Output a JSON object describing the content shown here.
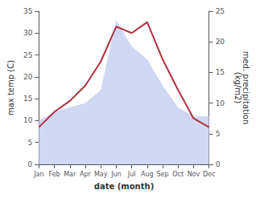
{
  "chart_data": {
    "type": "line",
    "categories": [
      "Jan",
      "Feb",
      "Mar",
      "Apr",
      "May",
      "Jun",
      "Jul",
      "Aug",
      "Sep",
      "Oct",
      "Nov",
      "Dec"
    ],
    "series": [
      {
        "type": "area",
        "color": "#c8d0f0",
        "values": [
          10,
          12,
          13,
          14,
          17,
          33,
          27,
          24,
          18,
          13,
          11,
          11
        ]
      },
      {
        "type": "line",
        "color": "#b03040",
        "values": [
          8.5,
          12.0,
          14.5,
          18.0,
          23.5,
          31.5,
          30.0,
          32.5,
          24.0,
          17.0,
          10.5,
          8.5
        ]
      }
    ],
    "xlabel": "date (month)",
    "ylabel": "max temp (C)",
    "y2label": "med. precipitation\n(kg/m2)",
    "ylim": [
      0,
      35
    ],
    "yticks": [
      0,
      5,
      10,
      15,
      20,
      25,
      30,
      35
    ],
    "y2lim": [
      0,
      25
    ],
    "y2ticks": [
      0,
      5,
      10,
      15,
      20,
      25
    ],
    "grid": false
  }
}
